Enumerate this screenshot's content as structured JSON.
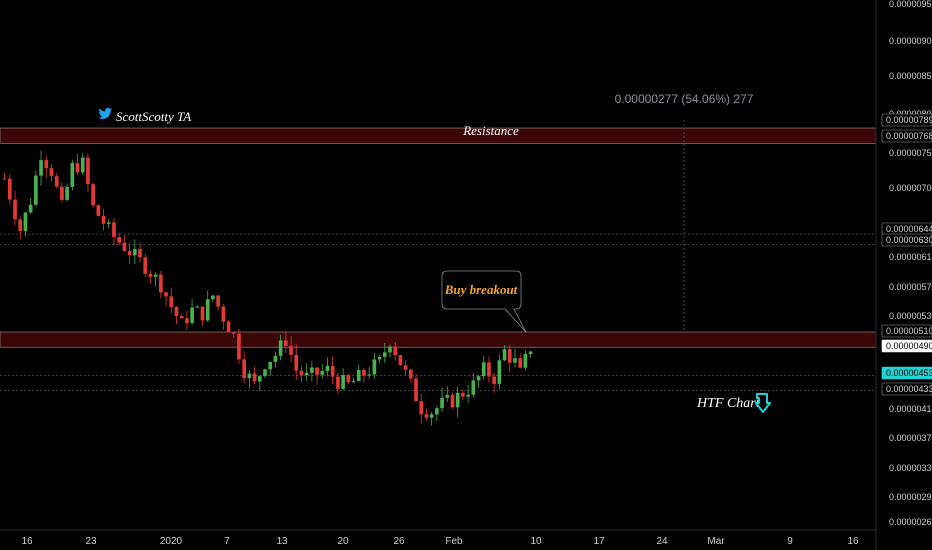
{
  "colors": {
    "background": "#000000",
    "up": "#4caf50",
    "down": "#e53935",
    "zone": "#5a0a0a",
    "zone_border": "#8a8a8a",
    "accent_cyan": "#22d3d3",
    "buy_text": "#f5a623"
  },
  "watermark": {
    "icon": "twitter-bird-icon",
    "text": "ScottScotty TA"
  },
  "annotations": {
    "resistance": "Resistance",
    "buy_breakout": "Buy breakout",
    "measure": "0.00000277 (54.06%) 277",
    "htf_chart": "HTF Chart",
    "htf_icon": "hand-pointing-down-icon"
  },
  "chart_data": {
    "type": "candlestick",
    "title": "",
    "xlabel": "",
    "ylabel": "",
    "x_ticks": [
      "16",
      "23",
      "2020",
      "7",
      "13",
      "20",
      "26",
      "Feb",
      "10",
      "17",
      "24",
      "Mar",
      "9",
      "16"
    ],
    "y_ticks": [
      "0.00000950",
      "0.00000900",
      "0.00000850",
      "0.00000800",
      "0.00000750",
      "0.00000700",
      "0.00000610",
      "0.00000570",
      "0.00000530",
      "0.00000410",
      "0.00000370",
      "0.00000330",
      "0.00000295",
      "0.00000261"
    ],
    "price_labels": [
      {
        "value": "0.00000789",
        "style": "box"
      },
      {
        "value": "0.00000768",
        "style": "box"
      },
      {
        "value": "0.00000644",
        "style": "box"
      },
      {
        "value": "0.00000630",
        "style": "box"
      },
      {
        "value": "0.00000510",
        "style": "box"
      },
      {
        "value": "0.00000490",
        "style": "white"
      },
      {
        "value": "0.00000453",
        "style": "cyan"
      },
      {
        "value": "0.00000433",
        "style": "box"
      }
    ],
    "zones": [
      {
        "name": "Resistance",
        "top": 7.89e-06,
        "bottom": 7.68e-06
      },
      {
        "name": "Breakout",
        "top": 5.1e-06,
        "bottom": 4.9e-06
      }
    ],
    "horizontal_lines": [
      6.44e-06,
      6.3e-06,
      4.53e-06,
      4.33e-06
    ],
    "price_path": [
      [
        0,
        7.2e-06
      ],
      [
        3,
        6.5e-06
      ],
      [
        5,
        6.9e-06
      ],
      [
        7,
        7.55e-06
      ],
      [
        9,
        7.3e-06
      ],
      [
        11,
        6.8e-06
      ],
      [
        13,
        7.35e-06
      ],
      [
        15,
        7.4e-06
      ],
      [
        17,
        6.8e-06
      ],
      [
        19,
        6.6e-06
      ],
      [
        21,
        6.4e-06
      ],
      [
        24,
        6.2e-06
      ],
      [
        27,
        6e-06
      ],
      [
        30,
        5.75e-06
      ],
      [
        32,
        5.45e-06
      ],
      [
        34,
        5.2e-06
      ],
      [
        36,
        5.4e-06
      ],
      [
        38,
        5.35e-06
      ],
      [
        40,
        5.6e-06
      ],
      [
        42,
        5.3e-06
      ],
      [
        44,
        5.05e-06
      ],
      [
        46,
        4.6e-06
      ],
      [
        48,
        4.4e-06
      ],
      [
        50,
        4.7e-06
      ],
      [
        52,
        4.8e-06
      ],
      [
        54,
        5e-06
      ],
      [
        56,
        4.6e-06
      ],
      [
        58,
        4.5e-06
      ],
      [
        60,
        4.55e-06
      ],
      [
        62,
        4.6e-06
      ],
      [
        64,
        4.45e-06
      ],
      [
        66,
        4.4e-06
      ],
      [
        68,
        4.5e-06
      ],
      [
        70,
        4.6e-06
      ],
      [
        72,
        4.7e-06
      ],
      [
        74,
        5e-06
      ],
      [
        76,
        4.7e-06
      ],
      [
        78,
        4.4e-06
      ],
      [
        80,
        4.1e-06
      ],
      [
        82,
        4.05e-06
      ],
      [
        84,
        4.15e-06
      ],
      [
        86,
        4.2e-06
      ],
      [
        88,
        4.3e-06
      ],
      [
        90,
        4.4e-06
      ],
      [
        92,
        4.6e-06
      ],
      [
        94,
        4.5e-06
      ],
      [
        96,
        4.85e-06
      ],
      [
        98,
        4.7e-06
      ],
      [
        99,
        4.55e-06
      ],
      [
        101,
        4.9e-06
      ]
    ]
  }
}
